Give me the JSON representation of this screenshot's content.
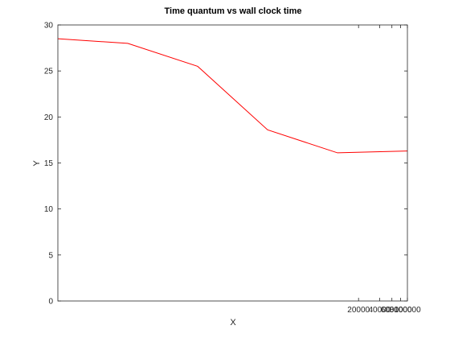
{
  "chart_data": {
    "type": "line",
    "title": "Time quantum vs wall clock time",
    "xlabel": "X",
    "ylabel": "Y",
    "x_scale": "log",
    "xlim": [
      1,
      100000
    ],
    "ylim": [
      0,
      30
    ],
    "x_ticks": [
      {
        "value": 20000,
        "label": "20000"
      },
      {
        "value": 40000,
        "label": "40000"
      },
      {
        "value": 60000,
        "label": "60000"
      },
      {
        "value": 80000,
        "label": "80000"
      },
      {
        "value": 100000,
        "label": "100000"
      }
    ],
    "y_ticks": [
      {
        "value": 0,
        "label": "0"
      },
      {
        "value": 5,
        "label": "5"
      },
      {
        "value": 10,
        "label": "10"
      },
      {
        "value": 15,
        "label": "15"
      },
      {
        "value": 20,
        "label": "20"
      },
      {
        "value": 25,
        "label": "25"
      },
      {
        "value": 30,
        "label": "30"
      }
    ],
    "grid": false,
    "series": [
      {
        "color": "#ff0000",
        "x": [
          1,
          10,
          100,
          1000,
          10000,
          100000
        ],
        "y": [
          28.5,
          28.0,
          25.5,
          18.6,
          16.1,
          16.3
        ]
      }
    ]
  }
}
